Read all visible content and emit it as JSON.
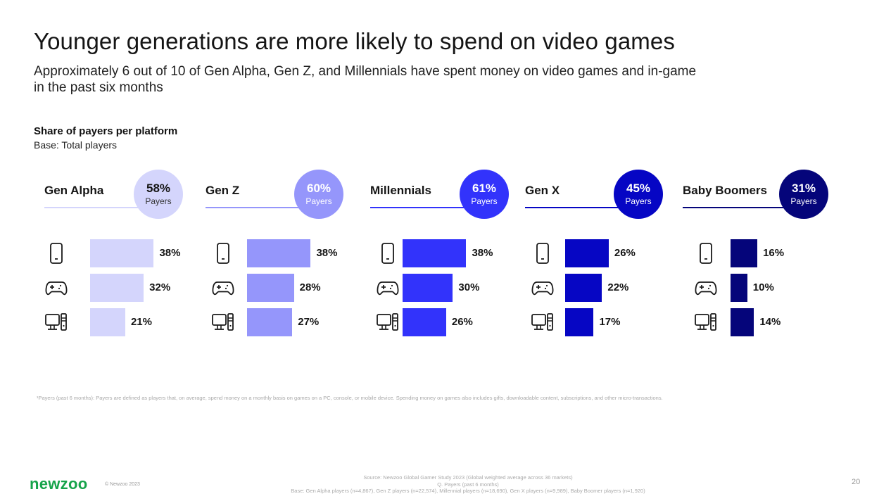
{
  "header": {
    "title": "Younger generations are more likely to spend on video games",
    "subtitle": "Approximately 6 out of 10 of Gen Alpha, Gen Z, and Millennials have spent money on video games and in-game in the past six months"
  },
  "section": {
    "title": "Share of payers per platform",
    "base": "Base: Total players"
  },
  "platforms": [
    {
      "name": "Mobile",
      "icon": "smartphone-icon"
    },
    {
      "name": "Console",
      "icon": "gamepad-icon"
    },
    {
      "name": "PC",
      "icon": "desktop-pc-icon"
    }
  ],
  "chart_data": {
    "type": "bar",
    "orientation": "horizontal",
    "title": "Share of payers per platform",
    "subtitle": "Base: Total players",
    "categories": [
      "Mobile",
      "Console",
      "PC"
    ],
    "unit": "%",
    "xlim": [
      0,
      100
    ],
    "grid": false,
    "series": [
      {
        "name": "Gen Alpha",
        "payers_total": 58,
        "payers_label": "Payers",
        "color": "#d4d5fc",
        "line_color": "#d4d5fc",
        "text_color": "#151515",
        "sub_text_color": "#333333",
        "values": [
          38,
          32,
          21
        ]
      },
      {
        "name": "Gen Z",
        "payers_total": 60,
        "payers_label": "Payers",
        "color": "#9596fb",
        "line_color": "#9596fb",
        "text_color": "#ffffff",
        "sub_text_color": "#ffffff",
        "values": [
          38,
          28,
          27
        ]
      },
      {
        "name": "Millennials",
        "payers_total": 61,
        "payers_label": "Payers",
        "color": "#3233fb",
        "line_color": "#3233fb",
        "text_color": "#ffffff",
        "sub_text_color": "#ffffff",
        "values": [
          38,
          30,
          26
        ]
      },
      {
        "name": "Gen X",
        "payers_total": 45,
        "payers_label": "Payers",
        "color": "#0606c4",
        "line_color": "#0606c4",
        "text_color": "#ffffff",
        "sub_text_color": "#ffffff",
        "values": [
          26,
          22,
          17
        ]
      },
      {
        "name": "Baby Boomers",
        "payers_total": 31,
        "payers_label": "Payers",
        "color": "#05057a",
        "line_color": "#05057a",
        "text_color": "#ffffff",
        "sub_text_color": "#ffffff",
        "values": [
          16,
          10,
          14
        ]
      }
    ]
  },
  "footer": {
    "footnote": "¹Payers (past 6 months): Payers are defined as players that, on average, spend money on a monthly basis on games on a PC, console, or mobile device. Spending money on games also includes gifts, downloadable content, subscriptions, and other micro-transactions.",
    "logo": "newzoo",
    "copyright": "© Newzoo 2023",
    "source_line1": "Source: Newzoo Global Gamer Study 2023 (Global weighted average across 36 markets)",
    "source_line2": "Q. Payers (past 6 months)",
    "source_line3": "Base: Gen Alpha players (n=4,867), Gen Z players (n=22,574), Millennial players (n=18,690), Gen X players (n=9,989), Baby Boomer players (n=1,920)",
    "page_number": "20",
    "brand_color": "#16a34a"
  }
}
